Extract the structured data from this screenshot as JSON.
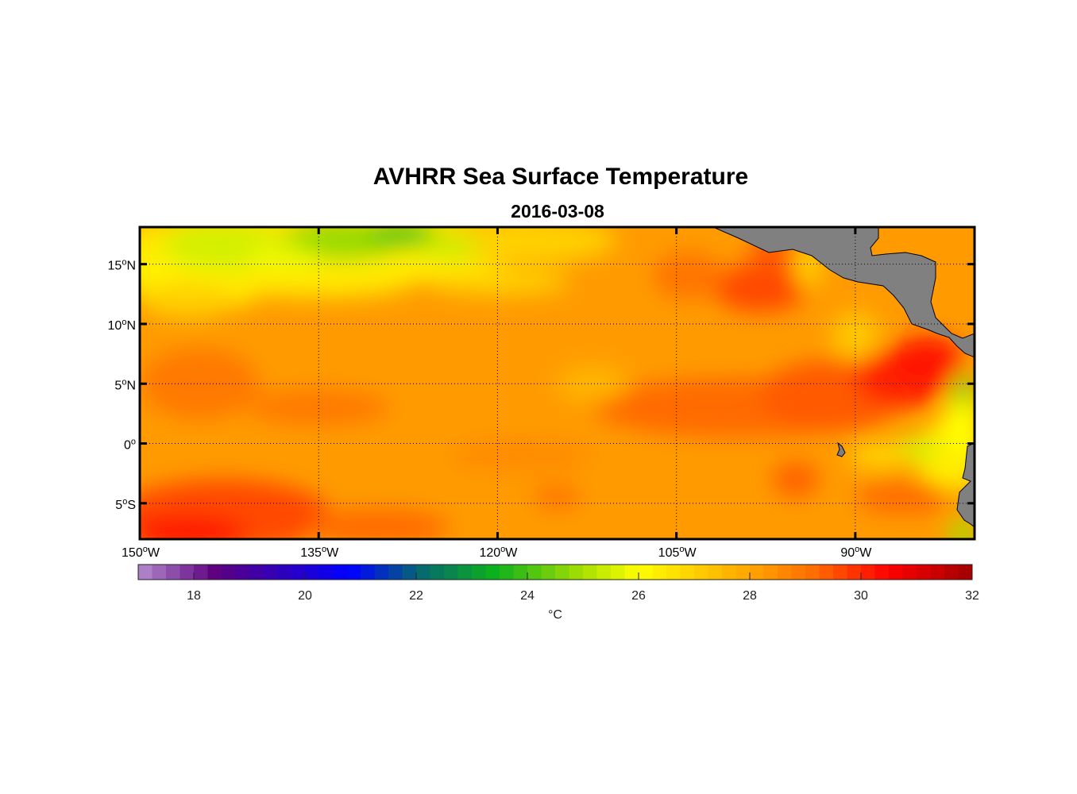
{
  "chart_data": {
    "type": "heatmap",
    "title": "AVHRR Sea Surface Temperature",
    "subtitle": "2016-03-08",
    "lon_range": [
      -150,
      -80
    ],
    "lat_range": [
      -8,
      18.1
    ],
    "lon_ticks": [
      {
        "value": -150,
        "label": "150",
        "suffix": "W"
      },
      {
        "value": -135,
        "label": "135",
        "suffix": "W"
      },
      {
        "value": -120,
        "label": "120",
        "suffix": "W"
      },
      {
        "value": -105,
        "label": "105",
        "suffix": "W"
      },
      {
        "value": -90,
        "label": "90",
        "suffix": "W"
      }
    ],
    "lat_ticks": [
      {
        "value": 15,
        "label": "15",
        "suffix": "N"
      },
      {
        "value": 10,
        "label": "10",
        "suffix": "N"
      },
      {
        "value": 5,
        "label": "5",
        "suffix": "N"
      },
      {
        "value": 0,
        "label": "0",
        "suffix": ""
      },
      {
        "value": -5,
        "label": "5",
        "suffix": "S"
      }
    ],
    "grid": "dotted",
    "colorbar": {
      "range": [
        17,
        32
      ],
      "ticks": [
        "18",
        "20",
        "22",
        "24",
        "26",
        "28",
        "30",
        "32"
      ],
      "tick_values": [
        18,
        20,
        22,
        24,
        26,
        28,
        30,
        32
      ],
      "units": "°C",
      "colormap": [
        [
          17,
          "#b58ccd"
        ],
        [
          18.4,
          "#5c007e"
        ],
        [
          20.8,
          "#0000ff"
        ],
        [
          22.1,
          "#066a6e"
        ],
        [
          23.4,
          "#0cb01c"
        ],
        [
          25.0,
          "#a8e000"
        ],
        [
          26.0,
          "#ffff00"
        ],
        [
          27.0,
          "#ffd000"
        ],
        [
          28.0,
          "#ffa500"
        ],
        [
          29.2,
          "#ff6a00"
        ],
        [
          30.5,
          "#ff0000"
        ],
        [
          32,
          "#a00000"
        ]
      ]
    },
    "land_color": "#808080",
    "background_temp": 28.2
  }
}
